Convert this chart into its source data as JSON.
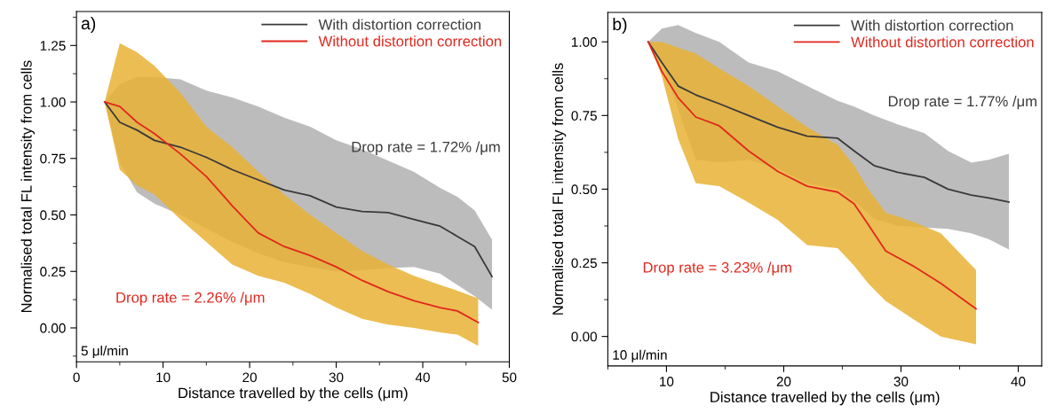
{
  "chart_data": [
    {
      "type": "line",
      "xlabel": "Distance travelled by the cells (μm)",
      "ylabel": "Normalised total FL intensity from cells",
      "xlim": [
        0,
        50
      ],
      "xticks": [
        0,
        10,
        20,
        30,
        40,
        50
      ],
      "ylim": [
        -0.15,
        1.4
      ],
      "yticks": [
        {
          "value": 0,
          "label": "0.00"
        },
        {
          "value": 0.25,
          "label": "0.25"
        },
        {
          "value": 0.5,
          "label": "0.50"
        },
        {
          "value": 0.75,
          "label": "0.75"
        },
        {
          "value": 1.0,
          "label": "1.00"
        },
        {
          "value": 1.25,
          "label": "1.25"
        }
      ],
      "legend": "top right",
      "grid": false,
      "annotations": [
        "a)",
        "5 μl/min",
        "Drop rate = 1.72% /μm",
        "Drop rate = 2.26% /μm"
      ],
      "series": [
        {
          "name": "With distortion correction",
          "color": "#3a3a3a",
          "x": [
            3.25,
            5,
            7,
            9,
            12,
            15,
            18,
            21,
            24,
            27,
            30,
            33,
            36,
            39,
            42,
            44,
            46,
            48
          ],
          "values": [
            1.0,
            0.91,
            0.875,
            0.83,
            0.8,
            0.755,
            0.7,
            0.655,
            0.61,
            0.585,
            0.535,
            0.515,
            0.51,
            0.48,
            0.45,
            0.405,
            0.36,
            0.227
          ],
          "upper": [
            1.0,
            1.08,
            1.11,
            1.11,
            1.1,
            1.05,
            1.02,
            0.98,
            0.93,
            0.89,
            0.83,
            0.79,
            0.74,
            0.69,
            0.62,
            0.58,
            0.52,
            0.39
          ],
          "lower": [
            1.0,
            0.73,
            0.6,
            0.55,
            0.5,
            0.44,
            0.38,
            0.33,
            0.29,
            0.27,
            0.25,
            0.255,
            0.265,
            0.27,
            0.24,
            0.19,
            0.14,
            0.08
          ]
        },
        {
          "name": "Without distortion correction",
          "color": "#e0281e",
          "x": [
            3.25,
            5,
            7,
            9,
            12,
            15,
            18,
            21,
            24,
            27,
            30,
            33,
            36,
            39,
            42,
            44,
            46.4
          ],
          "values": [
            1.0,
            0.98,
            0.91,
            0.86,
            0.77,
            0.67,
            0.54,
            0.42,
            0.36,
            0.32,
            0.27,
            0.21,
            0.16,
            0.12,
            0.09,
            0.075,
            0.024
          ],
          "upper": [
            1.0,
            1.26,
            1.22,
            1.16,
            1.04,
            0.89,
            0.8,
            0.69,
            0.59,
            0.5,
            0.42,
            0.34,
            0.28,
            0.23,
            0.19,
            0.165,
            0.13
          ],
          "lower": [
            1.0,
            0.7,
            0.63,
            0.59,
            0.48,
            0.38,
            0.28,
            0.23,
            0.2,
            0.15,
            0.09,
            0.04,
            0.015,
            0.0,
            -0.02,
            -0.03,
            -0.08
          ]
        }
      ]
    },
    {
      "type": "line",
      "xlabel": "Distance travelled by the cells (μm)",
      "ylabel": "Normalised total FL intensity from cells",
      "xlim": [
        5,
        42
      ],
      "xticks": [
        10,
        20,
        30,
        40
      ],
      "ylim": [
        -0.1,
        1.1
      ],
      "yticks": [
        {
          "value": 0,
          "label": "0.00"
        },
        {
          "value": 0.25,
          "label": "0.25"
        },
        {
          "value": 0.5,
          "label": "0.50"
        },
        {
          "value": 0.75,
          "label": "0.75"
        },
        {
          "value": 1.0,
          "label": "1.00"
        }
      ],
      "legend": "top right",
      "grid": false,
      "annotations": [
        "b)",
        "10 μl/min",
        "Drop rate = 1.77% /μm",
        "Drop rate = 3.23% /μm"
      ],
      "series": [
        {
          "name": "With distortion correction",
          "color": "#3a3a3a",
          "x": [
            8.44,
            9.6,
            11,
            12.5,
            14.5,
            17,
            19.5,
            22,
            24.6,
            26,
            27.7,
            29.7,
            32,
            34,
            36,
            37.5,
            39.2
          ],
          "values": [
            1.0,
            0.93,
            0.85,
            0.82,
            0.79,
            0.75,
            0.71,
            0.68,
            0.673,
            0.63,
            0.58,
            0.557,
            0.54,
            0.5,
            0.48,
            0.47,
            0.456
          ],
          "upper": [
            1.0,
            1.045,
            1.057,
            1.03,
            1.0,
            0.93,
            0.9,
            0.85,
            0.8,
            0.78,
            0.75,
            0.72,
            0.69,
            0.63,
            0.59,
            0.6,
            0.62
          ],
          "lower": [
            1.0,
            0.935,
            0.77,
            0.6,
            0.59,
            0.6,
            0.57,
            0.52,
            0.5,
            0.46,
            0.4,
            0.376,
            0.37,
            0.365,
            0.35,
            0.33,
            0.295
          ]
        },
        {
          "name": "Without distortion correction",
          "color": "#e0281e",
          "x": [
            8.44,
            9.6,
            11,
            12.5,
            14.5,
            17,
            19.5,
            22,
            24.6,
            26,
            27.2,
            28.7,
            31,
            33.4,
            36.4
          ],
          "values": [
            1.0,
            0.9,
            0.81,
            0.745,
            0.715,
            0.63,
            0.56,
            0.51,
            0.49,
            0.45,
            0.38,
            0.29,
            0.24,
            0.18,
            0.094
          ],
          "upper": [
            1.0,
            1.0,
            0.98,
            0.96,
            0.91,
            0.85,
            0.78,
            0.71,
            0.65,
            0.58,
            0.5,
            0.42,
            0.39,
            0.35,
            0.225
          ],
          "lower": [
            1.0,
            0.884,
            0.67,
            0.52,
            0.51,
            0.455,
            0.395,
            0.31,
            0.3,
            0.24,
            0.18,
            0.12,
            0.06,
            0.0,
            -0.027
          ]
        }
      ]
    }
  ]
}
